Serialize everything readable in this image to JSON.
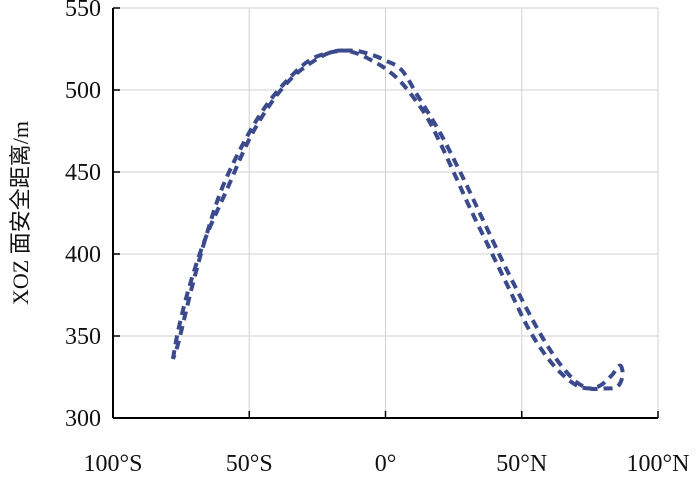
{
  "chart_data": {
    "type": "line",
    "title": "",
    "xlabel": "",
    "ylabel": "XOZ 面安全距离/m",
    "xlim": [
      -100,
      100
    ],
    "ylim": [
      300,
      550
    ],
    "x_ticks": [
      -100,
      -50,
      0,
      50,
      100
    ],
    "x_tick_labels": [
      "100°S",
      "50°S",
      "0°",
      "50°N",
      "100°N"
    ],
    "y_ticks": [
      300,
      350,
      400,
      450,
      500,
      550
    ],
    "y_tick_labels": [
      "300",
      "350",
      "400",
      "450",
      "500",
      "550"
    ],
    "grid": true,
    "line_color": "#3a4a8c",
    "series": [
      {
        "name": "",
        "x": [
          -78,
          -76,
          -72,
          -66,
          -58,
          -50,
          -42,
          -34,
          -26,
          -20,
          -15,
          -10,
          -5,
          0,
          5,
          10,
          15,
          20,
          25,
          31,
          38,
          45,
          52,
          58,
          64,
          70,
          75,
          79,
          83,
          86,
          87,
          85,
          80,
          75,
          70,
          64,
          58,
          52,
          44,
          36,
          28,
          20,
          12,
          6,
          0,
          -6,
          -12,
          -20,
          -28,
          -36,
          -44,
          -52,
          -60,
          -66,
          -71,
          -76,
          -78
        ],
        "y": [
          336,
          354,
          380,
          410,
          440,
          470,
          492,
          508,
          518,
          523,
          524,
          522,
          518,
          513,
          506,
          496,
          484,
          468,
          450,
          428,
          404,
          380,
          356,
          340,
          328,
          320,
          318,
          320,
          326,
          332,
          326,
          319,
          318,
          318,
          322,
          333,
          348,
          366,
          392,
          420,
          448,
          474,
          496,
          512,
          518,
          522,
          524,
          523,
          518,
          506,
          490,
          468,
          440,
          410,
          380,
          346,
          336
        ]
      }
    ]
  }
}
